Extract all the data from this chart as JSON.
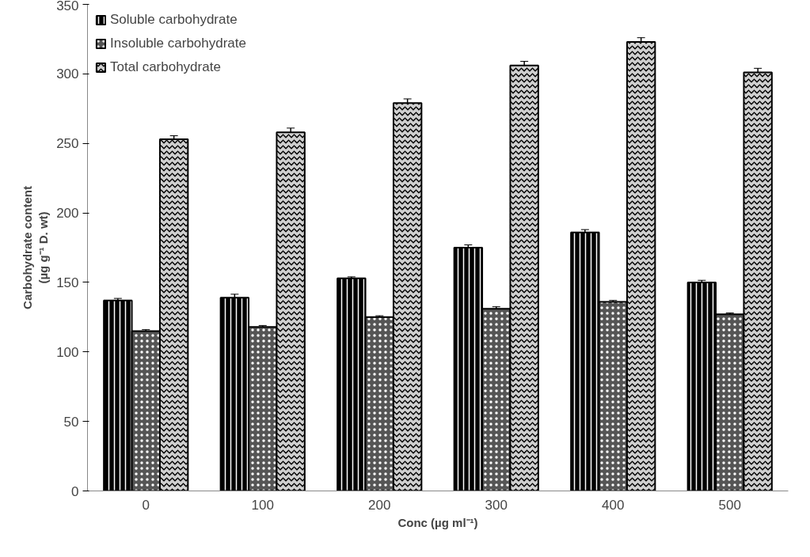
{
  "chart_data": {
    "type": "bar",
    "xlabel": "Conc (µg ml⁻¹)",
    "ylabel": "Carbohydrate content\n(µg g⁻¹ D. wt)",
    "categories": [
      "0",
      "100",
      "200",
      "300",
      "400",
      "500"
    ],
    "series": [
      {
        "name": "Soluble carbohydrate",
        "color": "#000000",
        "values": [
          137,
          139,
          153,
          175,
          186,
          150
        ],
        "errors": [
          1.5,
          2.5,
          1,
          2,
          2,
          1.5
        ]
      },
      {
        "name": "Insoluble carbohydrate",
        "color": "#555555",
        "values": [
          115,
          118,
          125,
          131,
          136,
          127
        ],
        "errors": [
          1,
          1,
          1,
          1.5,
          1,
          1
        ]
      },
      {
        "name": "Total carbohydrate",
        "color": "#d0d0d0",
        "values": [
          253,
          258,
          279,
          306,
          323,
          301
        ],
        "errors": [
          2.5,
          3,
          3,
          3,
          3,
          3
        ]
      }
    ],
    "ylim": [
      0,
      350
    ],
    "yticks": [
      0,
      50,
      100,
      150,
      200,
      250,
      300,
      350
    ],
    "grid": false,
    "legend": "top left"
  }
}
